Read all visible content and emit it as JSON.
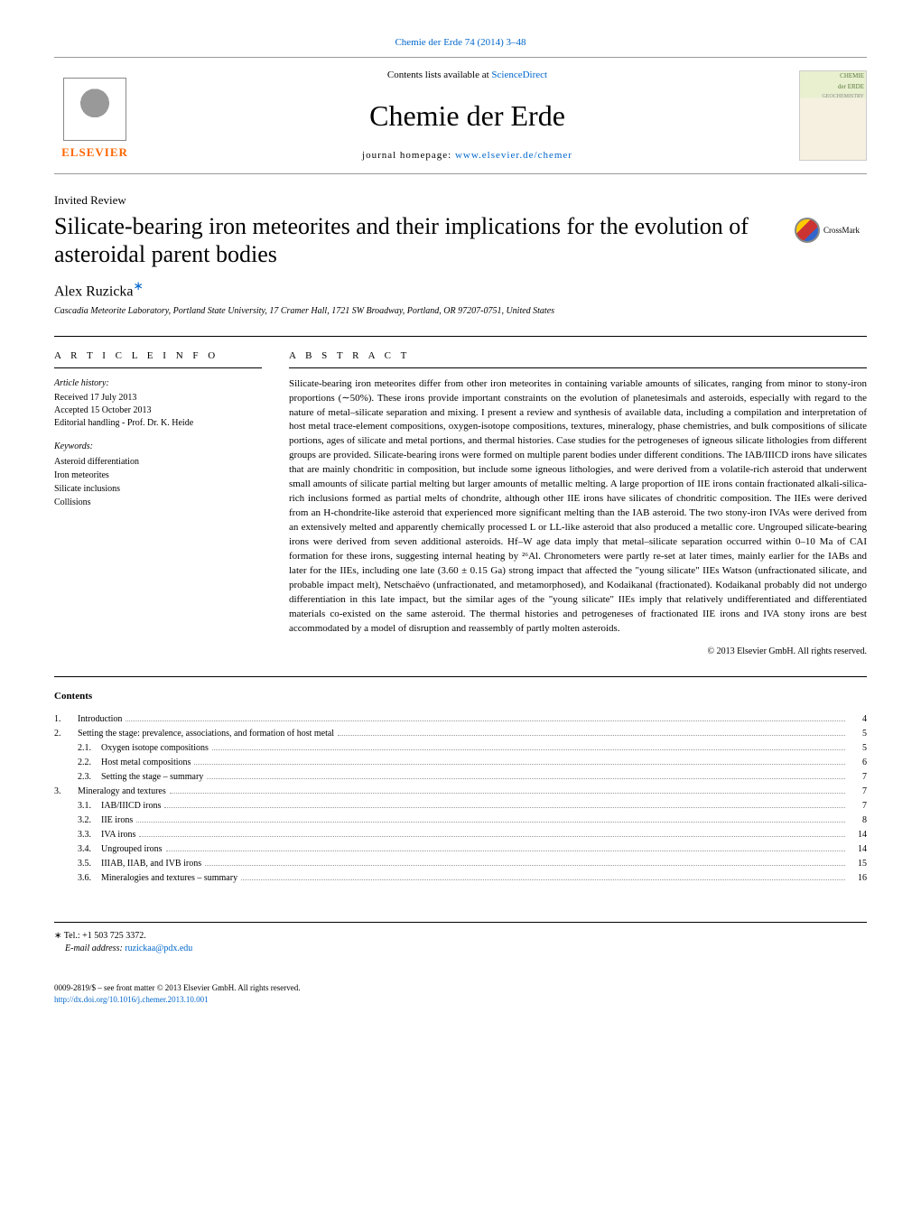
{
  "header": {
    "citation_link": "Chemie der Erde 74 (2014) 3–48",
    "citation_color": "#0066cc",
    "contents_prefix": "Contents lists available at ",
    "contents_link": "ScienceDirect",
    "journal_name": "Chemie der Erde",
    "homepage_prefix": "journal homepage: ",
    "homepage_url": "www.elsevier.de/chemer",
    "elsevier_label": "ELSEVIER",
    "cover_line1": "CHEMIE",
    "cover_line2": "der ERDE",
    "cover_line3": "GEOCHEMISTRY",
    "crossmark_label": "CrossMark"
  },
  "article": {
    "type": "Invited Review",
    "title": "Silicate-bearing iron meteorites and their implications for the evolution of asteroidal parent bodies",
    "author": "Alex Ruzicka",
    "author_mark": "∗",
    "affiliation": "Cascadia Meteorite Laboratory, Portland State University, 17 Cramer Hall, 1721 SW Broadway, Portland, OR 97207-0751, United States"
  },
  "info": {
    "heading": "A R T I C L E   I N F O",
    "history_label": "Article history:",
    "history_text": "Received 17 July 2013\nAccepted 15 October 2013\nEditorial handling - Prof. Dr. K. Heide",
    "keywords_label": "Keywords:",
    "keywords": [
      "Asteroid differentiation",
      "Iron meteorites",
      "Silicate inclusions",
      "Collisions"
    ]
  },
  "abstract": {
    "heading": "A B S T R A C T",
    "text": "Silicate-bearing iron meteorites differ from other iron meteorites in containing variable amounts of silicates, ranging from minor to stony-iron proportions (∼50%). These irons provide important constraints on the evolution of planetesimals and asteroids, especially with regard to the nature of metal–silicate separation and mixing. I present a review and synthesis of available data, including a compilation and interpretation of host metal trace-element compositions, oxygen-isotope compositions, textures, mineralogy, phase chemistries, and bulk compositions of silicate portions, ages of silicate and metal portions, and thermal histories. Case studies for the petrogeneses of igneous silicate lithologies from different groups are provided. Silicate-bearing irons were formed on multiple parent bodies under different conditions. The IAB/IIICD irons have silicates that are mainly chondritic in composition, but include some igneous lithologies, and were derived from a volatile-rich asteroid that underwent small amounts of silicate partial melting but larger amounts of metallic melting. A large proportion of IIE irons contain fractionated alkali-silica-rich inclusions formed as partial melts of chondrite, although other IIE irons have silicates of chondritic composition. The IIEs were derived from an H-chondrite-like asteroid that experienced more significant melting than the IAB asteroid. The two stony-iron IVAs were derived from an extensively melted and apparently chemically processed L or LL-like asteroid that also produced a metallic core. Ungrouped silicate-bearing irons were derived from seven additional asteroids. Hf–W age data imply that metal–silicate separation occurred within 0–10 Ma of CAI formation for these irons, suggesting internal heating by ²⁶Al. Chronometers were partly re-set at later times, mainly earlier for the IABs and later for the IIEs, including one late (3.60 ± 0.15 Ga) strong impact that affected the \"young silicate\" IIEs Watson (unfractionated silicate, and probable impact melt), Netschaëvo (unfractionated, and metamorphosed), and Kodaikanal (fractionated). Kodaikanal probably did not undergo differentiation in this late impact, but the similar ages of the \"young silicate\" IIEs imply that relatively undifferentiated and differentiated materials co-existed on the same asteroid. The thermal histories and petrogeneses of fractionated IIE irons and IVA stony irons are best accommodated by a model of disruption and reassembly of partly molten asteroids.",
    "copyright": "© 2013 Elsevier GmbH. All rights reserved."
  },
  "toc": {
    "heading": "Contents",
    "items": [
      {
        "num": "1.",
        "label": "Introduction",
        "page": "4",
        "sub": false
      },
      {
        "num": "2.",
        "label": "Setting the stage: prevalence, associations, and formation of host metal",
        "page": "5",
        "sub": false
      },
      {
        "num": "2.1.",
        "label": "Oxygen isotope compositions",
        "page": "5",
        "sub": true
      },
      {
        "num": "2.2.",
        "label": "Host metal compositions",
        "page": "6",
        "sub": true
      },
      {
        "num": "2.3.",
        "label": "Setting the stage – summary",
        "page": "7",
        "sub": true
      },
      {
        "num": "3.",
        "label": "Mineralogy and textures",
        "page": "7",
        "sub": false
      },
      {
        "num": "3.1.",
        "label": "IAB/IIICD irons",
        "page": "7",
        "sub": true
      },
      {
        "num": "3.2.",
        "label": "IIE irons",
        "page": "8",
        "sub": true
      },
      {
        "num": "3.3.",
        "label": "IVA irons",
        "page": "14",
        "sub": true
      },
      {
        "num": "3.4.",
        "label": "Ungrouped irons",
        "page": "14",
        "sub": true
      },
      {
        "num": "3.5.",
        "label": "IIIAB, IIAB, and IVB irons",
        "page": "15",
        "sub": true
      },
      {
        "num": "3.6.",
        "label": "Mineralogies and textures – summary",
        "page": "16",
        "sub": true
      }
    ]
  },
  "footer": {
    "corr_mark": "∗",
    "tel": "Tel.: +1 503 725 3372.",
    "email_label": "E-mail address: ",
    "email": "ruzickaa@pdx.edu",
    "issn_line": "0009-2819/$ – see front matter © 2013 Elsevier GmbH. All rights reserved.",
    "doi": "http://dx.doi.org/10.1016/j.chemer.2013.10.001"
  },
  "colors": {
    "link": "#0066cc",
    "elsevier_orange": "#ff6600",
    "text": "#000000",
    "background": "#ffffff",
    "border": "#999999",
    "cover_green": "#5a7a3a"
  },
  "typography": {
    "body_size": 12,
    "title_size": 26,
    "journal_size": 32,
    "author_size": 16,
    "small_size": 10,
    "abstract_size": 11
  }
}
